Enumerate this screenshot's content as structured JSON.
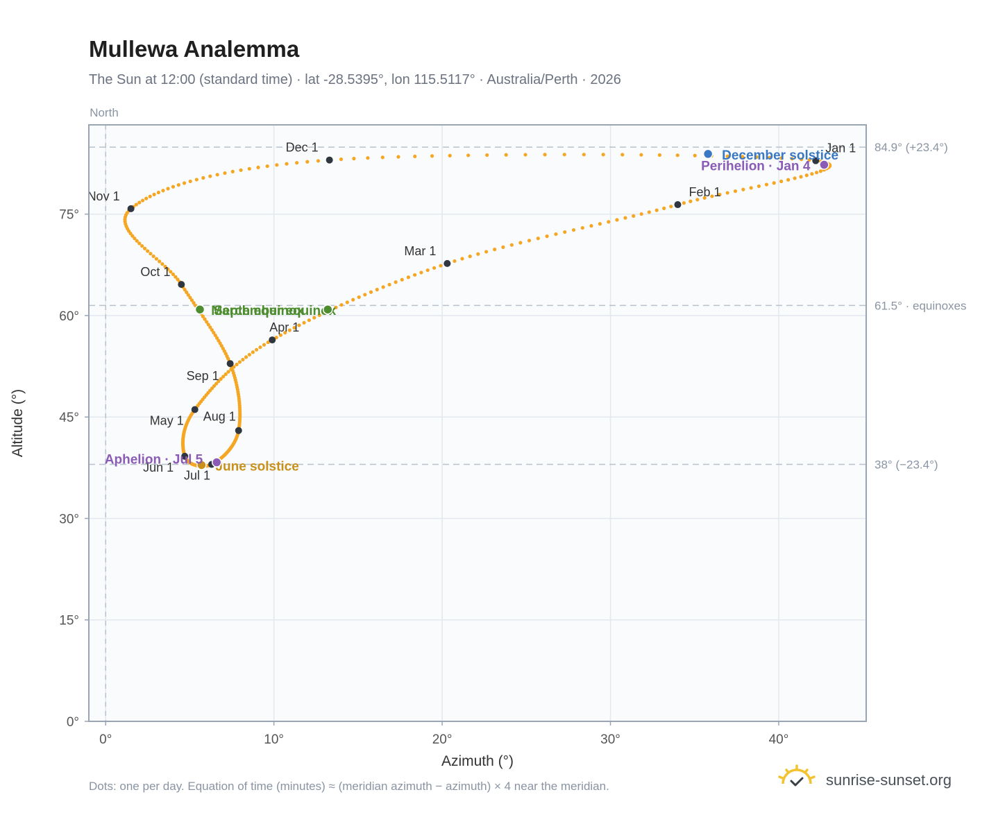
{
  "header": {
    "title": "Mullewa Analemma",
    "subtitle": "The Sun at 12:00 (standard time) · lat -28.5395°, lon 115.5117° · Australia/Perth · 2026"
  },
  "footer": {
    "note": "Dots: one per day. Equation of time (minutes) ≈ (meridian azimuth − azimuth) × 4 near the meridian.",
    "brand": "sunrise-sunset.org",
    "brand_icon": "sun-icon"
  },
  "chart_data": {
    "type": "scatter",
    "xlabel": "Azimuth (°)",
    "ylabel": "Altitude (°)",
    "xlim": [
      -1,
      45.2
    ],
    "ylim": [
      0,
      88.2
    ],
    "x_ticks": [
      0,
      10,
      20,
      30,
      40
    ],
    "y_ticks": [
      0,
      15,
      30,
      45,
      60,
      75
    ],
    "x_tick_labels": [
      "0°",
      "10°",
      "20°",
      "30°",
      "40°"
    ],
    "y_tick_labels": [
      "0°",
      "15°",
      "30°",
      "45°",
      "60°",
      "75°"
    ],
    "grid": true,
    "north_label": "North",
    "north_azimuth": 0,
    "reference_lines": [
      {
        "altitude": 84.9,
        "label": "84.9° (+23.4°)"
      },
      {
        "altitude": 61.5,
        "label": "61.5° · equinoxes"
      },
      {
        "altitude": 38.0,
        "label": "38° (−23.4°)"
      }
    ],
    "colors": {
      "curve": "#f5a623",
      "month_marker": "#2f3640",
      "solstice_dec": "#3a78c3",
      "solstice_jun": "#c9901a",
      "equinox": "#4e8d2f",
      "apsis": "#8b5cb5"
    },
    "month_markers": [
      {
        "label": "Jan 1",
        "az": 42.2,
        "alt": 82.9
      },
      {
        "label": "Feb 1",
        "az": 34.0,
        "alt": 76.4
      },
      {
        "label": "Mar 1",
        "az": 20.3,
        "alt": 67.7
      },
      {
        "label": "Apr 1",
        "az": 9.9,
        "alt": 56.4
      },
      {
        "label": "May 1",
        "az": 5.3,
        "alt": 46.1
      },
      {
        "label": "Jun 1",
        "az": 4.7,
        "alt": 39.2
      },
      {
        "label": "Jul 1",
        "az": 6.3,
        "alt": 38.0
      },
      {
        "label": "Aug 1",
        "az": 7.9,
        "alt": 43.0
      },
      {
        "label": "Sep 1",
        "az": 7.4,
        "alt": 52.9
      },
      {
        "label": "Oct 1",
        "az": 4.5,
        "alt": 64.6
      },
      {
        "label": "Nov 1",
        "az": 1.5,
        "alt": 75.8
      },
      {
        "label": "Dec 1",
        "az": 13.3,
        "alt": 83.0
      }
    ],
    "events": [
      {
        "label": "December solstice",
        "az": 35.8,
        "alt": 83.9,
        "kind": "solstice_dec"
      },
      {
        "label": "June solstice",
        "az": 5.7,
        "alt": 37.9,
        "kind": "solstice_jun"
      },
      {
        "label": "September equinox",
        "az": 5.6,
        "alt": 60.9,
        "kind": "equinox"
      },
      {
        "label": "March equinox",
        "az": 13.2,
        "alt": 60.9,
        "kind": "equinox"
      },
      {
        "label": "Perihelion · Jan 4",
        "az": 42.7,
        "alt": 82.3,
        "kind": "apsis"
      },
      {
        "label": "Aphelion · Jul 5",
        "az": 6.6,
        "alt": 38.3,
        "kind": "apsis"
      }
    ]
  }
}
